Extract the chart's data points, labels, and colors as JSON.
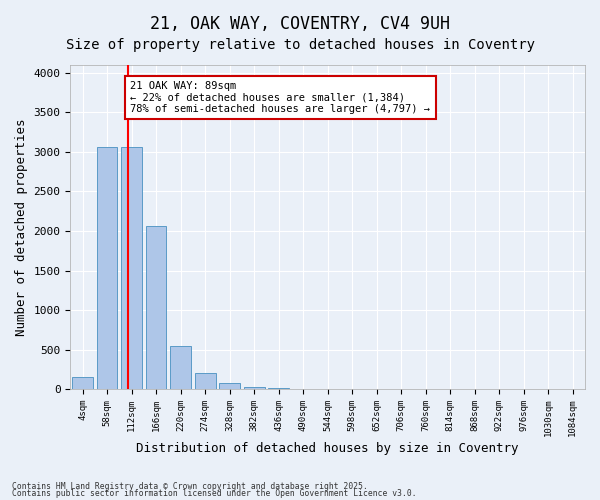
{
  "title1": "21, OAK WAY, COVENTRY, CV4 9UH",
  "title2": "Size of property relative to detached houses in Coventry",
  "xlabel": "Distribution of detached houses by size in Coventry",
  "ylabel": "Number of detached properties",
  "bin_labels": [
    "4sqm",
    "58sqm",
    "112sqm",
    "166sqm",
    "220sqm",
    "274sqm",
    "328sqm",
    "382sqm",
    "436sqm",
    "490sqm",
    "544sqm",
    "598sqm",
    "652sqm",
    "706sqm",
    "760sqm",
    "814sqm",
    "868sqm",
    "922sqm",
    "976sqm",
    "1030sqm",
    "1084sqm"
  ],
  "bar_values": [
    150,
    3060,
    3060,
    2060,
    550,
    200,
    75,
    30,
    10,
    0,
    0,
    0,
    0,
    0,
    0,
    0,
    0,
    0,
    0,
    0,
    0
  ],
  "bar_color": "#aec6e8",
  "bar_edge_color": "#5a9bc7",
  "red_line_x": 1.85,
  "annotation_text": "21 OAK WAY: 89sqm\n← 22% of detached houses are smaller (1,384)\n78% of semi-detached houses are larger (4,797) →",
  "annotation_box_color": "#ffffff",
  "annotation_box_edge": "#cc0000",
  "ylim": [
    0,
    4100
  ],
  "yticks": [
    0,
    500,
    1000,
    1500,
    2000,
    2500,
    3000,
    3500,
    4000
  ],
  "footer1": "Contains HM Land Registry data © Crown copyright and database right 2025.",
  "footer2": "Contains public sector information licensed under the Open Government Licence v3.0.",
  "plot_bg": "#eaf0f8",
  "fig_bg": "#eaf0f8",
  "title_fontsize": 12,
  "subtitle_fontsize": 10,
  "label_fontsize": 9
}
